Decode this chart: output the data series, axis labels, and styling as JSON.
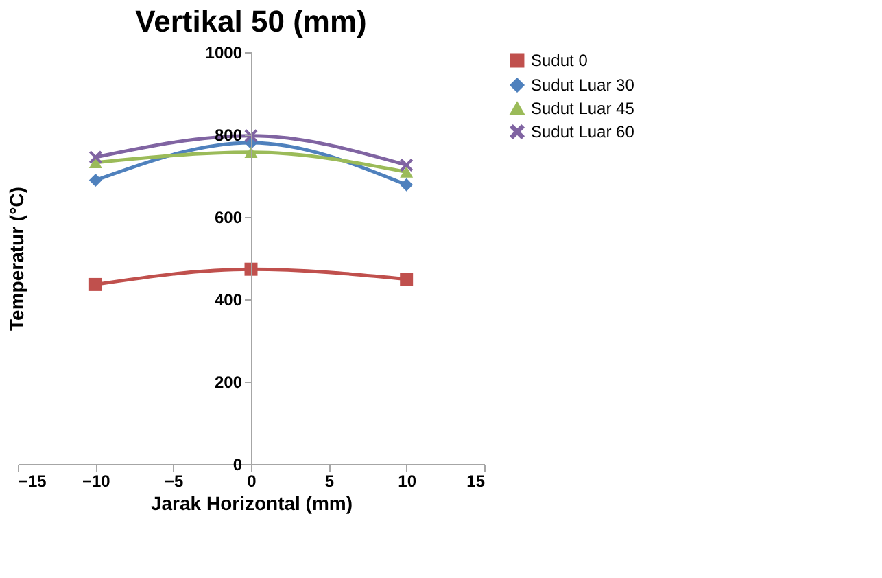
{
  "chart_data": {
    "type": "line",
    "title": "Vertikal 50 (mm)",
    "xlabel": "Jarak Horizontal (mm)",
    "ylabel": "Temperatur (°C)",
    "x": [
      -10,
      0,
      10
    ],
    "series": [
      {
        "name": "Sudut 0",
        "color": "#c0504d",
        "marker": "square",
        "values": [
          436,
          473,
          449
        ]
      },
      {
        "name": "Sudut Luar 30",
        "color": "#4f81bd",
        "marker": "diamond",
        "values": [
          689,
          780,
          678
        ]
      },
      {
        "name": "Sudut Luar 45",
        "color": "#9bbb59",
        "marker": "triangle",
        "values": [
          732,
          757,
          709
        ]
      },
      {
        "name": "Sudut Luar 60",
        "color": "#8064a2",
        "marker": "cross",
        "values": [
          745,
          797,
          726
        ]
      }
    ],
    "xlim": [
      -15,
      15
    ],
    "xticks": [
      -15,
      -10,
      -5,
      0,
      5,
      10,
      15
    ],
    "ylim": [
      0,
      1000
    ],
    "yticks": [
      0,
      200,
      400,
      600,
      800,
      1000
    ],
    "grid": false,
    "legend": "right"
  }
}
